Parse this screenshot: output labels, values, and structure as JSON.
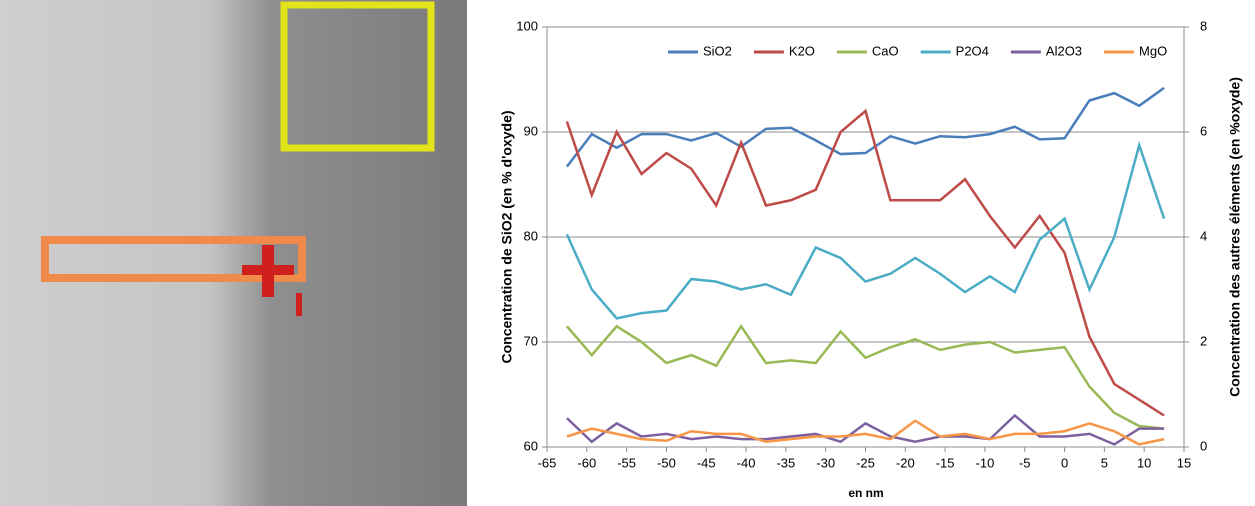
{
  "chart_data": {
    "type": "line",
    "xlabel": "en nm",
    "ylabel": "Concentration de SiO2 (en % d'oxyde)",
    "y2label": "Concentration des autres éléments (en %oxyde)",
    "x": [
      -62.5,
      -59.375,
      -56.25,
      -53.125,
      -50,
      -46.875,
      -43.75,
      -40.625,
      -37.5,
      -34.375,
      -31.25,
      -28.125,
      -25,
      -21.875,
      -18.75,
      -15.625,
      -12.5,
      -9.375,
      -6.25,
      -3.125,
      0,
      3.125,
      6.25,
      9.375,
      12.5
    ],
    "xlim": [
      -65,
      15
    ],
    "xticks": [
      -65,
      -60,
      -55,
      -50,
      -45,
      -40,
      -35,
      -30,
      -25,
      -20,
      -15,
      -10,
      -5,
      0,
      5,
      10,
      15
    ],
    "ylim": [
      60,
      100
    ],
    "yticks": [
      60,
      70,
      80,
      90,
      100
    ],
    "y2lim": [
      0,
      8
    ],
    "y2ticks": [
      0,
      2,
      4,
      6,
      8
    ],
    "grid": true,
    "legend": "top",
    "series": [
      {
        "name": "SiO2",
        "color": "#4a7ebb",
        "values": [
          86.7,
          89.8,
          88.5,
          89.8,
          89.8,
          89.2,
          89.9,
          88.6,
          90.3,
          90.4,
          89.2,
          87.9,
          88.0,
          89.6,
          88.9,
          89.6,
          89.5,
          89.8,
          90.5,
          89.3,
          89.4,
          93.0,
          93.7,
          92.5,
          94.2
        ]
      },
      {
        "name": "K2O",
        "color": "#be4b48",
        "axis": "y2",
        "values": [
          6.2,
          4.8,
          6.0,
          5.2,
          5.6,
          5.3,
          4.6,
          5.8,
          4.6,
          4.7,
          4.9,
          6.0,
          6.4,
          4.7,
          4.7,
          4.7,
          5.1,
          4.4,
          3.8,
          4.4,
          3.7,
          2.1,
          1.2,
          0.9,
          0.6
        ]
      },
      {
        "name": "CaO",
        "color": "#98b954",
        "axis": "y2",
        "values": [
          2.3,
          1.75,
          2.3,
          2.0,
          1.6,
          1.75,
          1.55,
          2.3,
          1.6,
          1.65,
          1.6,
          2.2,
          1.7,
          1.9,
          2.05,
          1.85,
          1.95,
          2.0,
          1.8,
          1.85,
          1.9,
          1.15,
          0.65,
          0.4,
          0.35
        ]
      },
      {
        "name": "P2O4",
        "color": "#4bacc6",
        "axis": "y2",
        "values": [
          4.05,
          3.0,
          2.45,
          2.55,
          2.6,
          3.2,
          3.15,
          3.0,
          3.1,
          2.9,
          3.8,
          3.6,
          3.15,
          3.3,
          3.6,
          3.3,
          2.95,
          3.25,
          2.95,
          3.95,
          4.35,
          3.0,
          4.0,
          5.75,
          4.35
        ]
      },
      {
        "name": "Al2O3",
        "color": "#7d60a0",
        "axis": "y2",
        "values": [
          0.55,
          0.1,
          0.45,
          0.2,
          0.25,
          0.15,
          0.2,
          0.15,
          0.15,
          0.2,
          0.25,
          0.1,
          0.45,
          0.2,
          0.1,
          0.2,
          0.2,
          0.15,
          0.6,
          0.2,
          0.2,
          0.25,
          0.05,
          0.35,
          0.35
        ]
      },
      {
        "name": "MgO",
        "color": "#f79646",
        "axis": "y2",
        "values": [
          0.2,
          0.35,
          0.25,
          0.15,
          0.12,
          0.3,
          0.25,
          0.25,
          0.1,
          0.15,
          0.2,
          0.2,
          0.25,
          0.15,
          0.5,
          0.2,
          0.25,
          0.15,
          0.25,
          0.25,
          0.3,
          0.45,
          0.3,
          0.05,
          0.15
        ]
      }
    ]
  }
}
